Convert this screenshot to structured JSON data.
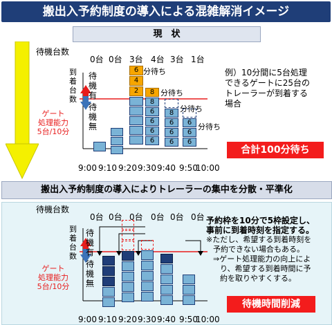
{
  "title": "搬出入予約制度の導入による混雑解消イメージ",
  "sections": {
    "current": {
      "label": "現　状",
      "queue_header": "待機台数",
      "queue_counts": [
        "0台",
        "0台",
        "3台",
        "4台",
        "3台",
        "1台"
      ],
      "note_lines": [
        "例）10分間に5台処理",
        "できるゲートに25台の",
        "トレーラーが到着する",
        "場合"
      ],
      "result": "合計100分待ち",
      "wait_labels": [
        "分待ち",
        "分待ち",
        "分待ち",
        "分待ち"
      ],
      "box_numbers_a": [
        "6",
        "4",
        "2"
      ],
      "box_numbers_b": [
        "8",
        "8",
        "6",
        "6",
        "6",
        "6"
      ],
      "box_numbers_c": [
        "8",
        "6",
        "6",
        "6",
        "6"
      ],
      "box_numbers_d": [
        "6",
        "6",
        "6",
        "6"
      ]
    },
    "reserved": {
      "label": "搬出入予約制度の導入によりトレーラーの集中を分散・平準化",
      "queue_header": "待機台数",
      "queue_counts": [
        "0台",
        "0台",
        "0台",
        "0台",
        "0台",
        "0台"
      ],
      "note_lines": [
        "予約枠を10分で5枠設定し、",
        "事前に到着時刻を指定する。",
        "※ただし、希望する到着時刻を",
        "予約できない場合もある。",
        "⇒ゲート処理能力の向上によ",
        "り、希望する到着時間に予",
        "約を取りやすくする。"
      ],
      "result": "待機時間削減"
    }
  },
  "common": {
    "y_axis_label": "到着台数",
    "waiting_yes": "待機有",
    "waiting_no": "待機無",
    "gate_lines": [
      "ゲート",
      "処理能力",
      "5台/10分"
    ],
    "time_labels": [
      "9:00",
      "9:10",
      "9:20",
      "9:30",
      "9:40",
      "9:50",
      "10:00"
    ]
  },
  "colors": {
    "title_bg": "#1f3e78",
    "box_fill": "#7ab3d6",
    "box_dark": "#1f3e78",
    "red": "#e81c1c",
    "orange": "#f7a600",
    "yellow_arrow": "#f4f000"
  }
}
